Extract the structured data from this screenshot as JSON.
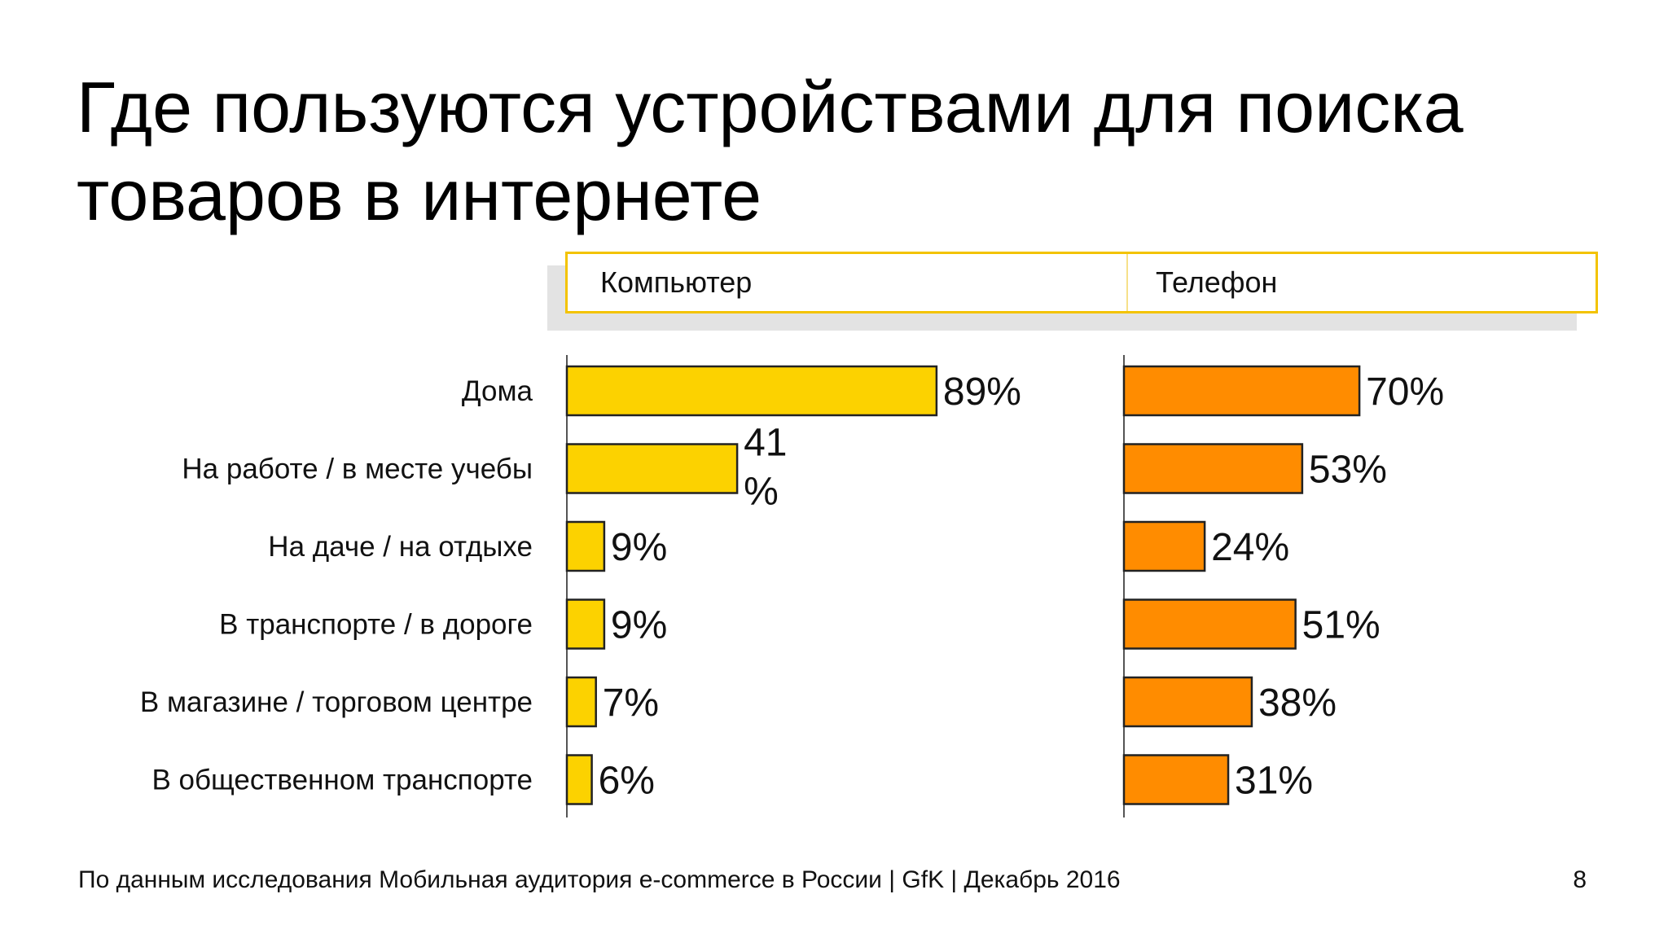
{
  "slide": {
    "title_line1": "Где пользуются устройствами для поиска",
    "title_line2": "товаров в интернете",
    "footer": "По данным исследования Мобильная аудитория e-commerce в России | GfK | Декабрь 2016",
    "page_number": "8"
  },
  "colors": {
    "computer_bar": "#fcd200",
    "phone_bar": "#ff8c00",
    "header_border": "#f3c300"
  },
  "chart_data": [
    {
      "type": "bar",
      "orientation": "horizontal",
      "title": "Компьютер",
      "categories": [
        "Дома",
        "На работе / в месте учебы",
        "На даче / на отдыхе",
        "В транспорте / в дороге",
        "В магазине / торговом центре",
        "В общественном транспорте"
      ],
      "values": [
        89,
        41,
        9,
        9,
        7,
        6
      ],
      "value_labels": [
        "89%",
        "41\n%",
        "9%",
        "9%",
        "7%",
        "6%"
      ],
      "unit": "%",
      "xlim": [
        0,
        100
      ]
    },
    {
      "type": "bar",
      "orientation": "horizontal",
      "title": "Телефон",
      "categories": [
        "Дома",
        "На работе / в месте учебы",
        "На даче / на отдыхе",
        "В транспорте / в дороге",
        "В магазине / торговом центре",
        "В общественном транспорте"
      ],
      "values": [
        70,
        53,
        24,
        51,
        38,
        31
      ],
      "value_labels": [
        "70%",
        "53%",
        "24%",
        "51%",
        "38%",
        "31%"
      ],
      "unit": "%",
      "xlim": [
        0,
        100
      ]
    }
  ]
}
